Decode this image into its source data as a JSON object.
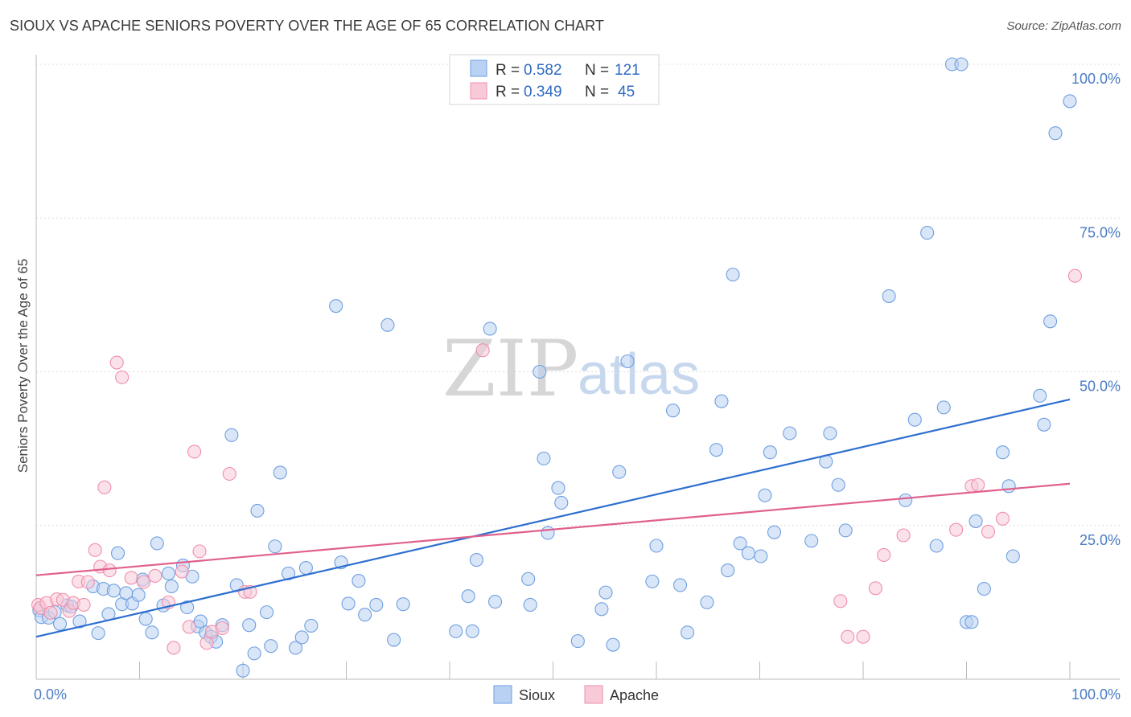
{
  "title": "SIOUX VS APACHE SENIORS POVERTY OVER THE AGE OF 65 CORRELATION CHART",
  "source": "Source: ZipAtlas.com",
  "watermark": {
    "zip": "ZIP",
    "atlas": "atlas"
  },
  "colors": {
    "sioux": "#6f9fe0",
    "sioux_fill": "#b9d1f3",
    "apache": "#ef8fac",
    "apache_fill": "#f8c9d7",
    "sioux_line": "#2e6fcf",
    "apache_line": "#e0608c",
    "grid": "#dcdcdc",
    "axis_text": "#4a7cc4"
  },
  "legend": {
    "rows": [
      {
        "r_label": "R =",
        "r_value": "0.582",
        "n_label": "N =",
        "n_value": "121"
      },
      {
        "r_label": "R =",
        "r_value": "0.349",
        "n_label": "N =",
        "n_value": "45"
      }
    ]
  },
  "bottom_legend": [
    "Sioux",
    "Apache"
  ],
  "chart_data": {
    "type": "scatter",
    "title": "SIOUX VS APACHE SENIORS POVERTY OVER THE AGE OF 65 CORRELATION CHART",
    "xlabel": "",
    "ylabel": "Seniors Poverty Over the Age of 65",
    "xlim": [
      0,
      100
    ],
    "ylim": [
      0,
      100
    ],
    "x_tick_labels": [
      "0.0%",
      "100.0%"
    ],
    "y_tick_labels": [
      "25.0%",
      "50.0%",
      "75.0%",
      "100.0%"
    ],
    "y_ticks": [
      25,
      50,
      75,
      100
    ],
    "series": [
      {
        "name": "Sioux",
        "r": 0.582,
        "n": 121,
        "trend": [
          [
            0,
            6.9
          ],
          [
            100,
            45.5
          ]
        ],
        "points": [
          [
            0.3,
            11.2
          ],
          [
            0.5,
            10.1
          ],
          [
            1.2,
            10.0
          ],
          [
            1.8,
            10.9
          ],
          [
            2.3,
            9.0
          ],
          [
            3.0,
            12.0
          ],
          [
            3.4,
            11.8
          ],
          [
            4.2,
            9.4
          ],
          [
            5.5,
            15.1
          ],
          [
            6.0,
            7.5
          ],
          [
            6.5,
            14.7
          ],
          [
            7.0,
            10.6
          ],
          [
            7.5,
            14.4
          ],
          [
            7.9,
            20.5
          ],
          [
            8.3,
            12.2
          ],
          [
            8.7,
            14.0
          ],
          [
            9.3,
            12.3
          ],
          [
            9.9,
            13.7
          ],
          [
            10.3,
            16.2
          ],
          [
            10.6,
            9.8
          ],
          [
            11.2,
            7.6
          ],
          [
            11.7,
            22.1
          ],
          [
            12.3,
            12.0
          ],
          [
            12.8,
            17.2
          ],
          [
            13.1,
            15.1
          ],
          [
            14.2,
            18.5
          ],
          [
            14.6,
            11.7
          ],
          [
            15.1,
            16.7
          ],
          [
            15.6,
            8.6
          ],
          [
            15.9,
            9.4
          ],
          [
            16.4,
            7.6
          ],
          [
            16.9,
            6.9
          ],
          [
            17.4,
            6.1
          ],
          [
            18.0,
            8.8
          ],
          [
            18.9,
            39.7
          ],
          [
            19.4,
            15.3
          ],
          [
            20.0,
            1.4
          ],
          [
            20.6,
            8.8
          ],
          [
            21.1,
            4.2
          ],
          [
            21.4,
            27.4
          ],
          [
            22.3,
            10.9
          ],
          [
            22.7,
            5.4
          ],
          [
            23.1,
            21.6
          ],
          [
            23.6,
            33.6
          ],
          [
            24.4,
            17.2
          ],
          [
            25.1,
            5.1
          ],
          [
            25.7,
            6.8
          ],
          [
            26.1,
            18.1
          ],
          [
            26.6,
            8.7
          ],
          [
            29.0,
            60.7
          ],
          [
            29.5,
            19.0
          ],
          [
            30.2,
            12.3
          ],
          [
            31.2,
            16.0
          ],
          [
            31.8,
            10.5
          ],
          [
            32.9,
            12.1
          ],
          [
            34.0,
            57.6
          ],
          [
            34.6,
            6.4
          ],
          [
            35.5,
            12.2
          ],
          [
            40.6,
            7.8
          ],
          [
            41.8,
            13.5
          ],
          [
            42.2,
            7.8
          ],
          [
            42.6,
            19.4
          ],
          [
            43.9,
            57.0
          ],
          [
            44.4,
            12.6
          ],
          [
            47.6,
            16.3
          ],
          [
            47.8,
            12.1
          ],
          [
            48.7,
            50.0
          ],
          [
            49.1,
            35.9
          ],
          [
            49.5,
            23.8
          ],
          [
            50.5,
            31.1
          ],
          [
            50.8,
            28.7
          ],
          [
            52.4,
            6.2
          ],
          [
            54.7,
            11.4
          ],
          [
            55.1,
            14.1
          ],
          [
            55.8,
            5.6
          ],
          [
            56.4,
            33.7
          ],
          [
            57.2,
            51.7
          ],
          [
            59.6,
            15.9
          ],
          [
            60.0,
            21.7
          ],
          [
            61.6,
            43.7
          ],
          [
            62.3,
            15.3
          ],
          [
            63.0,
            7.6
          ],
          [
            64.9,
            12.5
          ],
          [
            65.8,
            37.3
          ],
          [
            66.3,
            45.2
          ],
          [
            66.9,
            17.7
          ],
          [
            67.4,
            65.8
          ],
          [
            68.1,
            22.1
          ],
          [
            68.9,
            20.5
          ],
          [
            70.1,
            20.0
          ],
          [
            70.5,
            29.9
          ],
          [
            71.0,
            36.9
          ],
          [
            71.4,
            23.9
          ],
          [
            72.9,
            40.0
          ],
          [
            75.0,
            22.5
          ],
          [
            76.4,
            35.4
          ],
          [
            76.8,
            40.0
          ],
          [
            77.6,
            31.6
          ],
          [
            78.3,
            24.2
          ],
          [
            82.5,
            62.3
          ],
          [
            84.1,
            29.1
          ],
          [
            85.0,
            42.2
          ],
          [
            86.2,
            72.6
          ],
          [
            87.1,
            21.7
          ],
          [
            87.8,
            44.2
          ],
          [
            88.6,
            100.0
          ],
          [
            89.5,
            100.0
          ],
          [
            90.0,
            9.3
          ],
          [
            90.5,
            9.3
          ],
          [
            90.9,
            25.7
          ],
          [
            91.7,
            14.7
          ],
          [
            93.5,
            36.9
          ],
          [
            94.1,
            31.4
          ],
          [
            94.5,
            20.0
          ],
          [
            97.1,
            46.1
          ],
          [
            97.5,
            41.4
          ],
          [
            98.1,
            58.2
          ],
          [
            98.6,
            88.8
          ],
          [
            100.0,
            94.0
          ]
        ]
      },
      {
        "name": "Apache",
        "r": 0.349,
        "n": 45,
        "trend": [
          [
            0,
            16.9
          ],
          [
            100,
            31.8
          ]
        ],
        "points": [
          [
            0.2,
            12.1
          ],
          [
            0.4,
            11.6
          ],
          [
            1.0,
            12.4
          ],
          [
            1.4,
            10.8
          ],
          [
            2.0,
            13.0
          ],
          [
            2.6,
            12.9
          ],
          [
            3.2,
            11.1
          ],
          [
            3.6,
            12.4
          ],
          [
            4.1,
            15.9
          ],
          [
            4.6,
            12.1
          ],
          [
            5.0,
            15.8
          ],
          [
            5.7,
            21.0
          ],
          [
            6.2,
            18.3
          ],
          [
            6.6,
            31.2
          ],
          [
            7.1,
            17.7
          ],
          [
            7.8,
            51.5
          ],
          [
            8.3,
            49.1
          ],
          [
            9.2,
            16.5
          ],
          [
            10.4,
            15.8
          ],
          [
            11.5,
            16.8
          ],
          [
            12.8,
            12.5
          ],
          [
            13.3,
            5.1
          ],
          [
            14.1,
            17.5
          ],
          [
            14.8,
            8.5
          ],
          [
            15.3,
            37.0
          ],
          [
            15.8,
            20.8
          ],
          [
            16.5,
            5.9
          ],
          [
            17.0,
            7.7
          ],
          [
            18.0,
            8.3
          ],
          [
            18.7,
            33.4
          ],
          [
            20.2,
            14.2
          ],
          [
            20.7,
            14.2
          ],
          [
            43.2,
            53.5
          ],
          [
            77.8,
            12.7
          ],
          [
            78.5,
            6.9
          ],
          [
            80.0,
            6.9
          ],
          [
            81.2,
            14.8
          ],
          [
            82.0,
            20.2
          ],
          [
            83.9,
            23.4
          ],
          [
            89.0,
            24.3
          ],
          [
            90.5,
            31.4
          ],
          [
            91.1,
            31.6
          ],
          [
            92.1,
            24.0
          ],
          [
            93.5,
            26.1
          ],
          [
            100.5,
            65.6
          ]
        ]
      }
    ]
  }
}
